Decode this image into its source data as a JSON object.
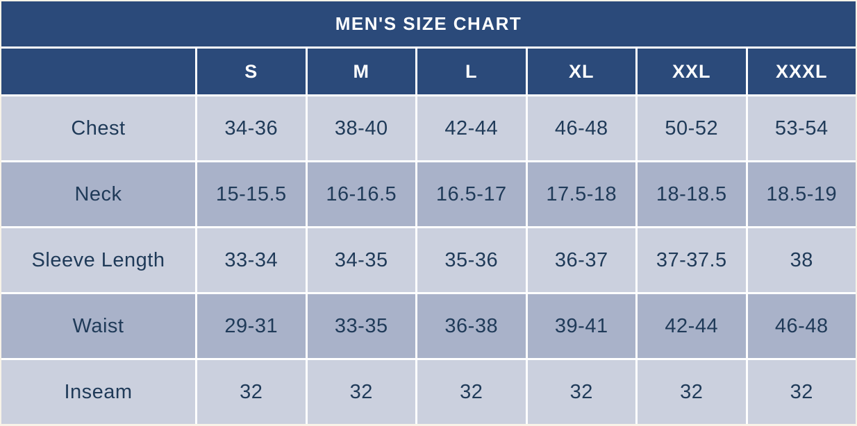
{
  "page": {
    "background_color": "#f8f3e8"
  },
  "colors": {
    "header_navy": "#2b4a7a",
    "header_text": "#ffffff",
    "row_light": "#cbd0de",
    "row_dark": "#a9b2c9",
    "cell_text": "#1f3a58",
    "gridline": "#ffffff"
  },
  "chart_data": {
    "type": "table",
    "title": "MEN'S SIZE CHART",
    "columns": [
      "S",
      "M",
      "L",
      "XL",
      "XXL",
      "XXXL"
    ],
    "rows": [
      {
        "label": "Chest",
        "values": [
          "34-36",
          "38-40",
          "42-44",
          "46-48",
          "50-52",
          "53-54"
        ]
      },
      {
        "label": "Neck",
        "values": [
          "15-15.5",
          "16-16.5",
          "16.5-17",
          "17.5-18",
          "18-18.5",
          "18.5-19"
        ]
      },
      {
        "label": "Sleeve Length",
        "values": [
          "33-34",
          "34-35",
          "35-36",
          "36-37",
          "37-37.5",
          "38"
        ]
      },
      {
        "label": "Waist",
        "values": [
          "29-31",
          "33-35",
          "36-38",
          "39-41",
          "42-44",
          "46-48"
        ]
      },
      {
        "label": "Inseam",
        "values": [
          "32",
          "32",
          "32",
          "32",
          "32",
          "32"
        ]
      }
    ]
  }
}
